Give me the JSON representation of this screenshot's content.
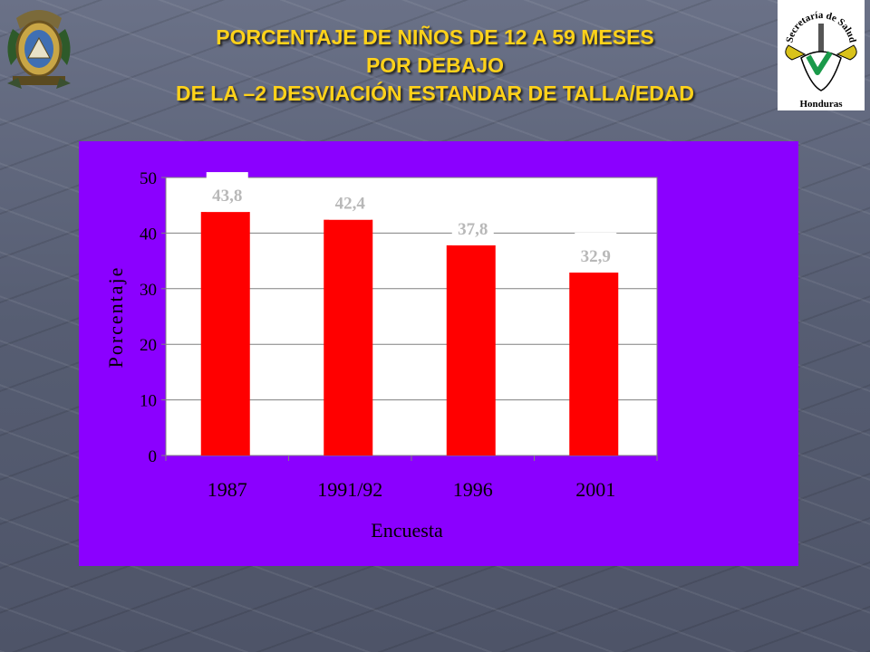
{
  "title": {
    "line1": "PORCENTAJE DE NIÑOS DE 12 A 59 MESES",
    "line2": "POR DEBAJO",
    "line3": "DE LA –2 DESVIACIÓN ESTANDAR DE TALLA/EDAD"
  },
  "logos": {
    "left": {
      "icon": "coat-of-arms-icon"
    },
    "right": {
      "icon": "health-secretariat-seal-icon",
      "arc_text": "Secretaría de Salud",
      "bottom_text": "Honduras"
    }
  },
  "colors": {
    "title": "#ffd21a",
    "panel_background": "#8b00ff",
    "plot_background": "#ffffff",
    "bar": "#ff0000",
    "data_label_box": "#ffffff",
    "data_label_text": "#b8b8b8"
  },
  "chart_data": {
    "type": "bar",
    "categories": [
      "1987",
      "1991/92",
      "1996",
      "2001"
    ],
    "values": [
      43.8,
      42.4,
      37.8,
      32.9
    ],
    "data_labels": [
      "43,8",
      "42,4",
      "37,8",
      "32,9"
    ],
    "xlabel": "Encuesta",
    "ylabel": "Porcentaje",
    "ylim": [
      0,
      50
    ],
    "yticks": [
      0,
      10,
      20,
      30,
      40,
      50
    ],
    "grid": true,
    "legend": "none"
  }
}
